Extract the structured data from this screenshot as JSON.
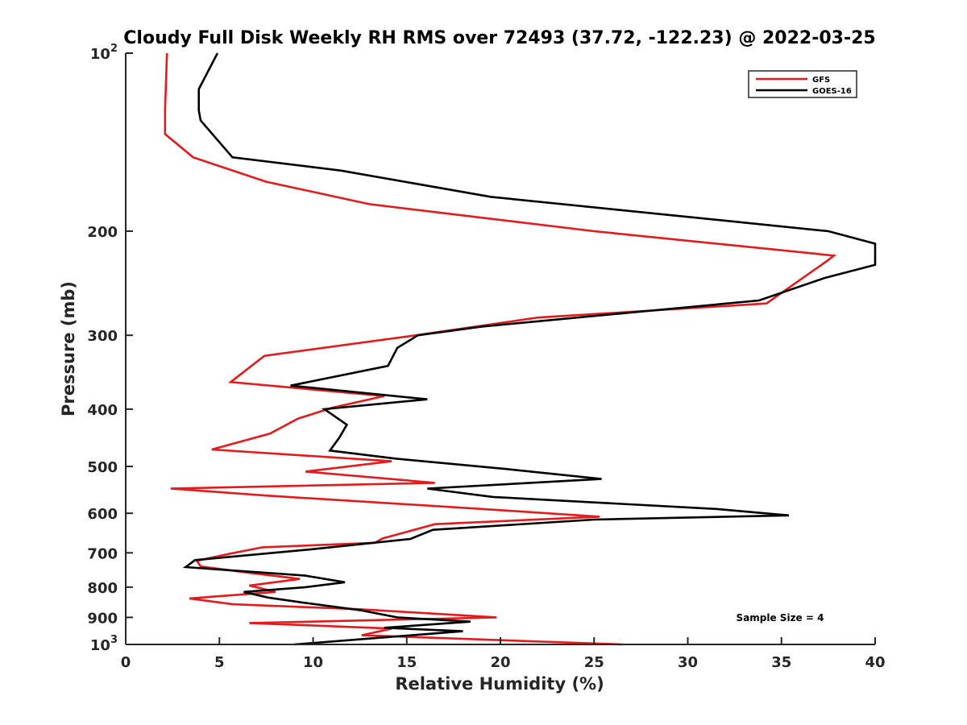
{
  "chart_data": {
    "type": "line",
    "title": "Cloudy Full Disk Weekly RH RMS over 72493 (37.72, -122.23) @ 2022-03-25",
    "xlabel": "Relative Humidity (%)",
    "ylabel": "Pressure (mb)",
    "xlim": [
      0,
      40
    ],
    "ylim": [
      100,
      1000
    ],
    "y_scale": "log",
    "y_direction": "reversed",
    "grid": false,
    "legend_position": "top-right",
    "x_ticks": [
      {
        "value": 0,
        "label": "0"
      },
      {
        "value": 5,
        "label": "5"
      },
      {
        "value": 10,
        "label": "10"
      },
      {
        "value": 15,
        "label": "15"
      },
      {
        "value": 20,
        "label": "20"
      },
      {
        "value": 25,
        "label": "25"
      },
      {
        "value": 30,
        "label": "30"
      },
      {
        "value": 35,
        "label": "35"
      },
      {
        "value": 40,
        "label": "40"
      }
    ],
    "y_ticks": [
      {
        "value": 100,
        "label": "10",
        "sup": "2"
      },
      {
        "value": 200,
        "label": "200",
        "sup": ""
      },
      {
        "value": 300,
        "label": "300",
        "sup": ""
      },
      {
        "value": 400,
        "label": "400",
        "sup": ""
      },
      {
        "value": 500,
        "label": "500",
        "sup": ""
      },
      {
        "value": 600,
        "label": "600",
        "sup": ""
      },
      {
        "value": 700,
        "label": "700",
        "sup": ""
      },
      {
        "value": 800,
        "label": "800",
        "sup": ""
      },
      {
        "value": 900,
        "label": "900",
        "sup": ""
      },
      {
        "value": 1000,
        "label": "10",
        "sup": "3"
      }
    ],
    "annotation": "Sample Size = 4",
    "series": [
      {
        "name": "GFS",
        "color": "#e41a1c",
        "points": [
          [
            2.2,
            100
          ],
          [
            2.1,
            125
          ],
          [
            2.1,
            137
          ],
          [
            3.6,
            150
          ],
          [
            7.5,
            165
          ],
          [
            13.0,
            180
          ],
          [
            25.0,
            200
          ],
          [
            37.8,
            220
          ],
          [
            37.4,
            225
          ],
          [
            34.2,
            265
          ],
          [
            22.0,
            280
          ],
          [
            15.5,
            300
          ],
          [
            7.4,
            325
          ],
          [
            5.6,
            360
          ],
          [
            13.8,
            380
          ],
          [
            11.0,
            398
          ],
          [
            9.2,
            415
          ],
          [
            7.7,
            440
          ],
          [
            4.6,
            468
          ],
          [
            14.2,
            490
          ],
          [
            9.6,
            510
          ],
          [
            16.5,
            533
          ],
          [
            2.4,
            545
          ],
          [
            7.5,
            560
          ],
          [
            19.0,
            590
          ],
          [
            25.3,
            608
          ],
          [
            16.5,
            626
          ],
          [
            13.7,
            662
          ],
          [
            13.3,
            673
          ],
          [
            7.3,
            685
          ],
          [
            5.6,
            702
          ],
          [
            3.8,
            722
          ],
          [
            4.0,
            738
          ],
          [
            6.5,
            756
          ],
          [
            9.3,
            775
          ],
          [
            6.6,
            795
          ],
          [
            8.0,
            815
          ],
          [
            3.4,
            836
          ],
          [
            5.7,
            855
          ],
          [
            12.5,
            872
          ],
          [
            19.8,
            900
          ],
          [
            6.6,
            920
          ],
          [
            14.2,
            940
          ],
          [
            12.6,
            965
          ],
          [
            26.5,
            1000
          ]
        ]
      },
      {
        "name": "GOES-16",
        "color": "#000000",
        "points": [
          [
            4.9,
            100
          ],
          [
            3.9,
            115
          ],
          [
            3.9,
            125
          ],
          [
            4.0,
            130
          ],
          [
            5.7,
            150
          ],
          [
            11.5,
            158
          ],
          [
            19.5,
            175
          ],
          [
            37.5,
            200
          ],
          [
            40.0,
            210
          ],
          [
            40.0,
            228
          ],
          [
            37.3,
            240
          ],
          [
            33.8,
            262
          ],
          [
            19.0,
            290
          ],
          [
            15.6,
            300
          ],
          [
            14.5,
            315
          ],
          [
            14.0,
            338
          ],
          [
            8.8,
            365
          ],
          [
            16.1,
            385
          ],
          [
            10.6,
            400
          ],
          [
            11.8,
            425
          ],
          [
            11.4,
            447
          ],
          [
            10.9,
            470
          ],
          [
            14.4,
            485
          ],
          [
            20.3,
            505
          ],
          [
            25.4,
            525
          ],
          [
            16.1,
            545
          ],
          [
            19.6,
            563
          ],
          [
            31.5,
            590
          ],
          [
            35.4,
            605
          ],
          [
            25.0,
            615
          ],
          [
            16.4,
            640
          ],
          [
            15.2,
            663
          ],
          [
            10.0,
            690
          ],
          [
            3.7,
            720
          ],
          [
            3.2,
            740
          ],
          [
            9.6,
            765
          ],
          [
            11.7,
            785
          ],
          [
            9.6,
            800
          ],
          [
            6.3,
            815
          ],
          [
            7.6,
            833
          ],
          [
            9.5,
            850
          ],
          [
            12.5,
            875
          ],
          [
            14.5,
            900
          ],
          [
            18.4,
            915
          ],
          [
            13.8,
            937
          ],
          [
            18.0,
            950
          ],
          [
            9.0,
            1000
          ]
        ]
      }
    ]
  }
}
